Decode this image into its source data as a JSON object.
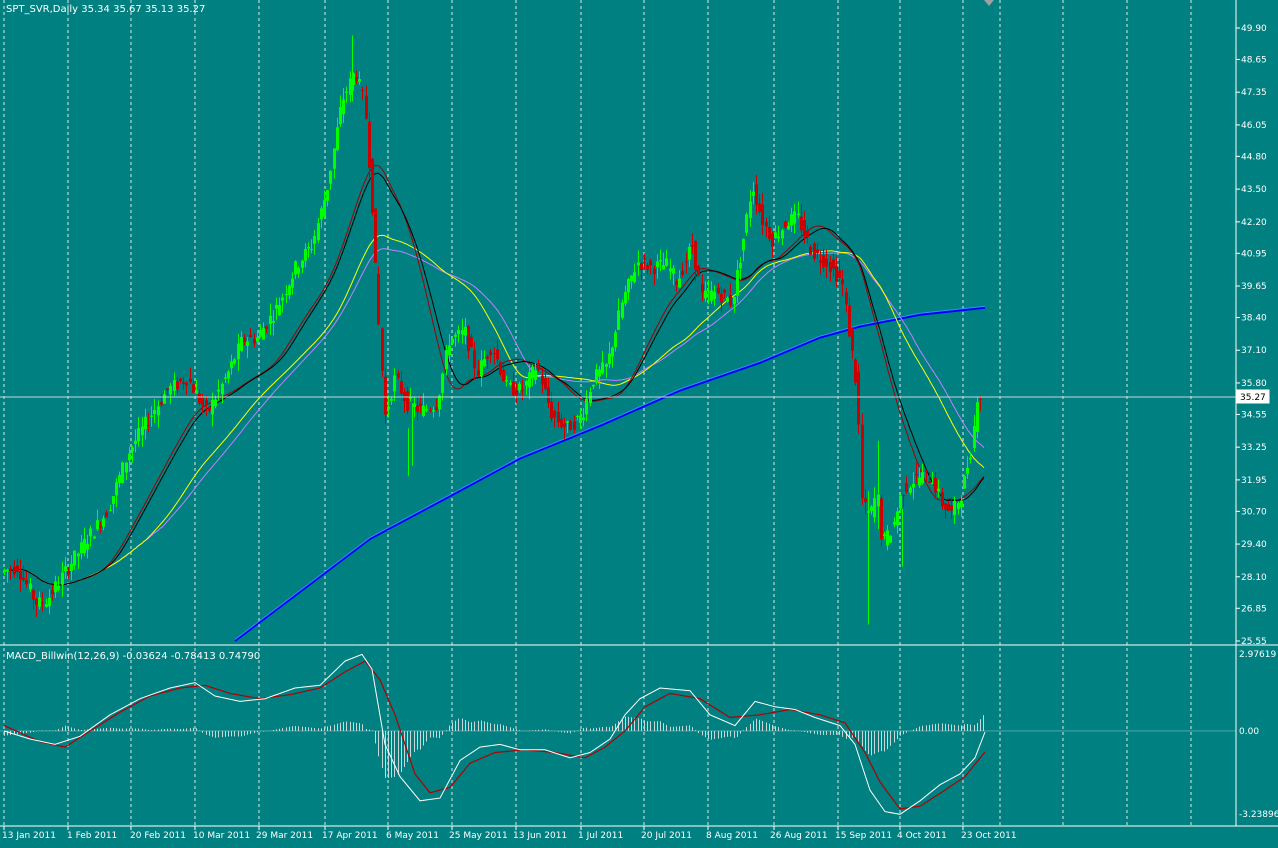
{
  "chart_title": "SPT_SVR,Daily  35.34 35.67 35.13 35.27",
  "price_axis_labels": [
    "49.90",
    "48.65",
    "47.35",
    "46.05",
    "44.80",
    "43.50",
    "42.20",
    "40.95",
    "39.65",
    "38.40",
    "37.10",
    "35.80",
    "34.55",
    "33.25",
    "31.95",
    "30.70",
    "29.40",
    "28.10",
    "26.85",
    "25.55"
  ],
  "current_price": "35.27",
  "date_labels": [
    "13 Jan 2011",
    "1 Feb 2011",
    "20 Feb 2011",
    "10 Mar 2011",
    "29 Mar 2011",
    "17 Apr 2011",
    "6 May 2011",
    "25 May 2011",
    "13 Jun 2011",
    "1 Jul 2011",
    "20 Jul 2011",
    "8 Aug 2011",
    "26 Aug 2011",
    "15 Sep 2011",
    "4 Oct 2011",
    "23 Oct 2011"
  ],
  "macd": {
    "title": "MACD_Billwin(12,26,9) -0.03624 -0.78413 0.74790",
    "axis_labels": [
      "2.97619",
      "0.00",
      "-3.23896"
    ]
  },
  "colors": {
    "background": "#008080",
    "grid": "#ffffff",
    "bull_candle": "#00ff00",
    "bear_candle": "#cc0000",
    "ma_black": "#000000",
    "ma_red": "#a00000",
    "ma_yellow": "#ffff00",
    "ma_violet": "#c080ff",
    "ma_blue": "#0000ff",
    "ma_lightblue": "#3a8cff",
    "macd_line": "#ffffff",
    "signal_line": "#b00000"
  },
  "chart_data": {
    "type": "candlestick",
    "title": "SPT_SVR,Daily",
    "ohlc_last": {
      "open": 35.34,
      "high": 35.67,
      "low": 35.13,
      "close": 35.27
    },
    "y_range": [
      25.55,
      49.9
    ],
    "x_range": [
      "13 Jan 2011",
      "23 Oct 2011"
    ],
    "close_approx": [
      {
        "date": "13 Jan 2011",
        "close": 28.3
      },
      {
        "date": "1 Feb 2011",
        "close": 29.6
      },
      {
        "date": "20 Feb 2011",
        "close": 33.0
      },
      {
        "date": "10 Mar 2011",
        "close": 35.5
      },
      {
        "date": "29 Mar 2011",
        "close": 38.3
      },
      {
        "date": "17 Apr 2011",
        "close": 47.8
      },
      {
        "date": "6 May 2011",
        "close": 34.5
      },
      {
        "date": "25 May 2011",
        "close": 37.8
      },
      {
        "date": "13 Jun 2011",
        "close": 34.2
      },
      {
        "date": "1 Jul 2011",
        "close": 36.0
      },
      {
        "date": "20 Jul 2011",
        "close": 40.3
      },
      {
        "date": "8 Aug 2011",
        "close": 42.5
      },
      {
        "date": "26 Aug 2011",
        "close": 42.0
      },
      {
        "date": "15 Sep 2011",
        "close": 30.0
      },
      {
        "date": "4 Oct 2011",
        "close": 31.9
      },
      {
        "date": "23 Oct 2011",
        "close": 35.27
      }
    ],
    "macd_range": [
      -3.23896,
      2.97619
    ]
  }
}
